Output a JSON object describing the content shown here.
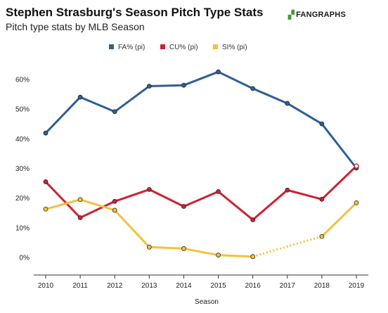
{
  "header": {
    "title": "Stephen Strasburg's Season Pitch Type Stats",
    "subtitle": "Pitch type stats by MLB Season",
    "logo_text": "FANGRAPHS"
  },
  "chart_data": {
    "type": "line",
    "title": "Stephen Strasburg's Season Pitch Type Stats",
    "subtitle": "Pitch type stats by MLB Season",
    "xlabel": "Season",
    "ylabel": "",
    "categories": [
      "2010",
      "2011",
      "2012",
      "2013",
      "2014",
      "2015",
      "2016",
      "2017",
      "2018",
      "2019"
    ],
    "y_ticks": [
      "0%",
      "10%",
      "20%",
      "30%",
      "40%",
      "50%",
      "60%"
    ],
    "ylim": [
      -6,
      66
    ],
    "grid": false,
    "legend_placement": "top-center",
    "series": [
      {
        "name": "FA% (pi)",
        "color": "#2f5f93",
        "values": [
          41.8,
          53.9,
          49.0,
          57.6,
          57.9,
          62.4,
          56.8,
          51.8,
          44.9,
          30.0
        ]
      },
      {
        "name": "CU% (pi)",
        "color": "#cc2232",
        "values": [
          25.4,
          13.3,
          18.8,
          22.8,
          17.1,
          22.1,
          12.6,
          22.6,
          19.5,
          30.7
        ]
      },
      {
        "name": "SI% (pi)",
        "color": "#f2c140",
        "values": [
          16.2,
          19.4,
          15.8,
          3.4,
          2.9,
          0.7,
          0.2,
          null,
          7.0,
          18.3
        ]
      }
    ]
  }
}
